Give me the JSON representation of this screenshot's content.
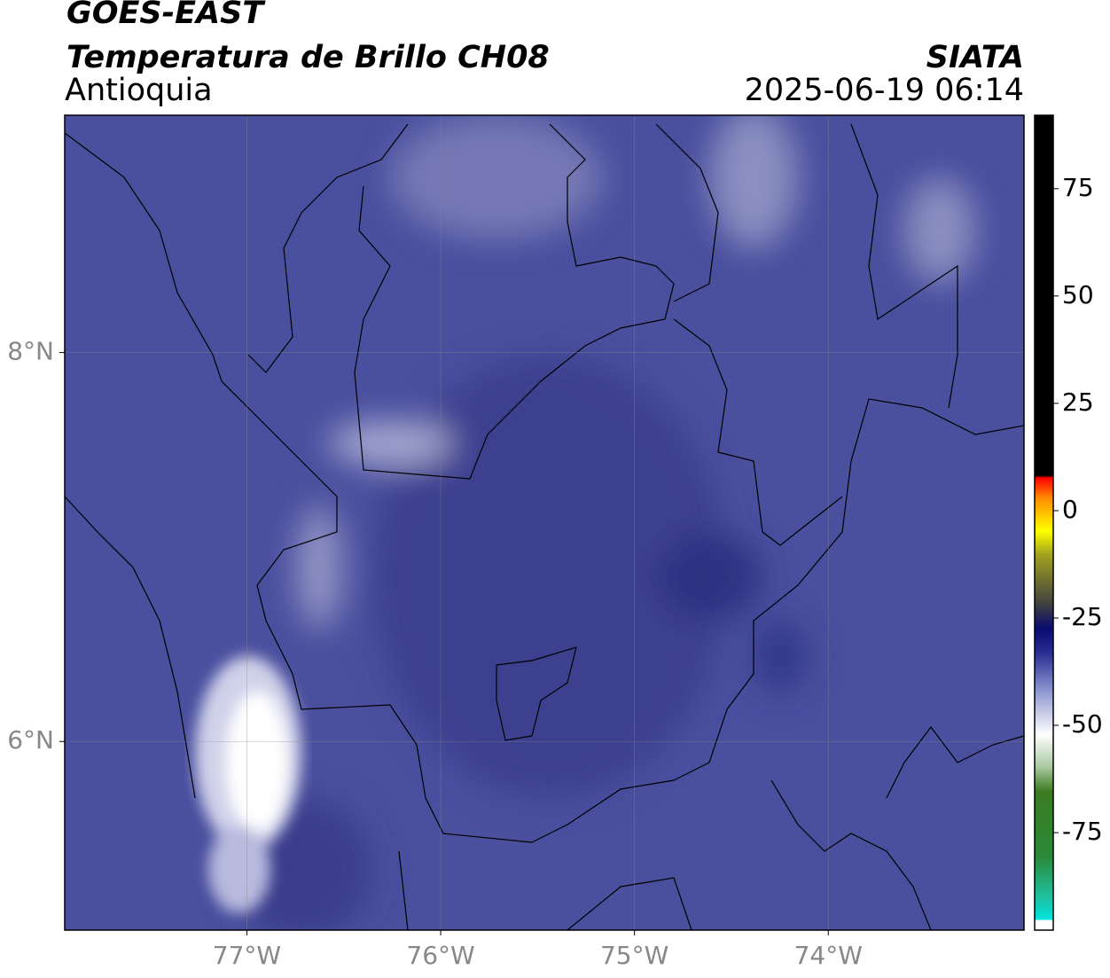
{
  "header": {
    "title": "GOES-EAST",
    "subtitle": "Temperatura de Brillo CH08",
    "region": "Antioquia",
    "source": "SIATA",
    "datetime": "2025-06-19 06:14"
  },
  "map": {
    "xlim": [
      -77.94,
      -72.99
    ],
    "ylim": [
      5.03,
      9.22
    ],
    "xticks": [
      {
        "value": -77,
        "label": "77°W"
      },
      {
        "value": -76,
        "label": "76°W"
      },
      {
        "value": -75,
        "label": "75°W"
      },
      {
        "value": -74,
        "label": "74°W"
      }
    ],
    "yticks": [
      {
        "value": 6,
        "label": "6°N"
      },
      {
        "value": 8,
        "label": "8°N"
      }
    ],
    "grid": true
  },
  "colorbar": {
    "lim": [
      -97.7,
      92.1
    ],
    "ticks": [
      75,
      50,
      25,
      0,
      -25,
      -50,
      -75
    ]
  }
}
